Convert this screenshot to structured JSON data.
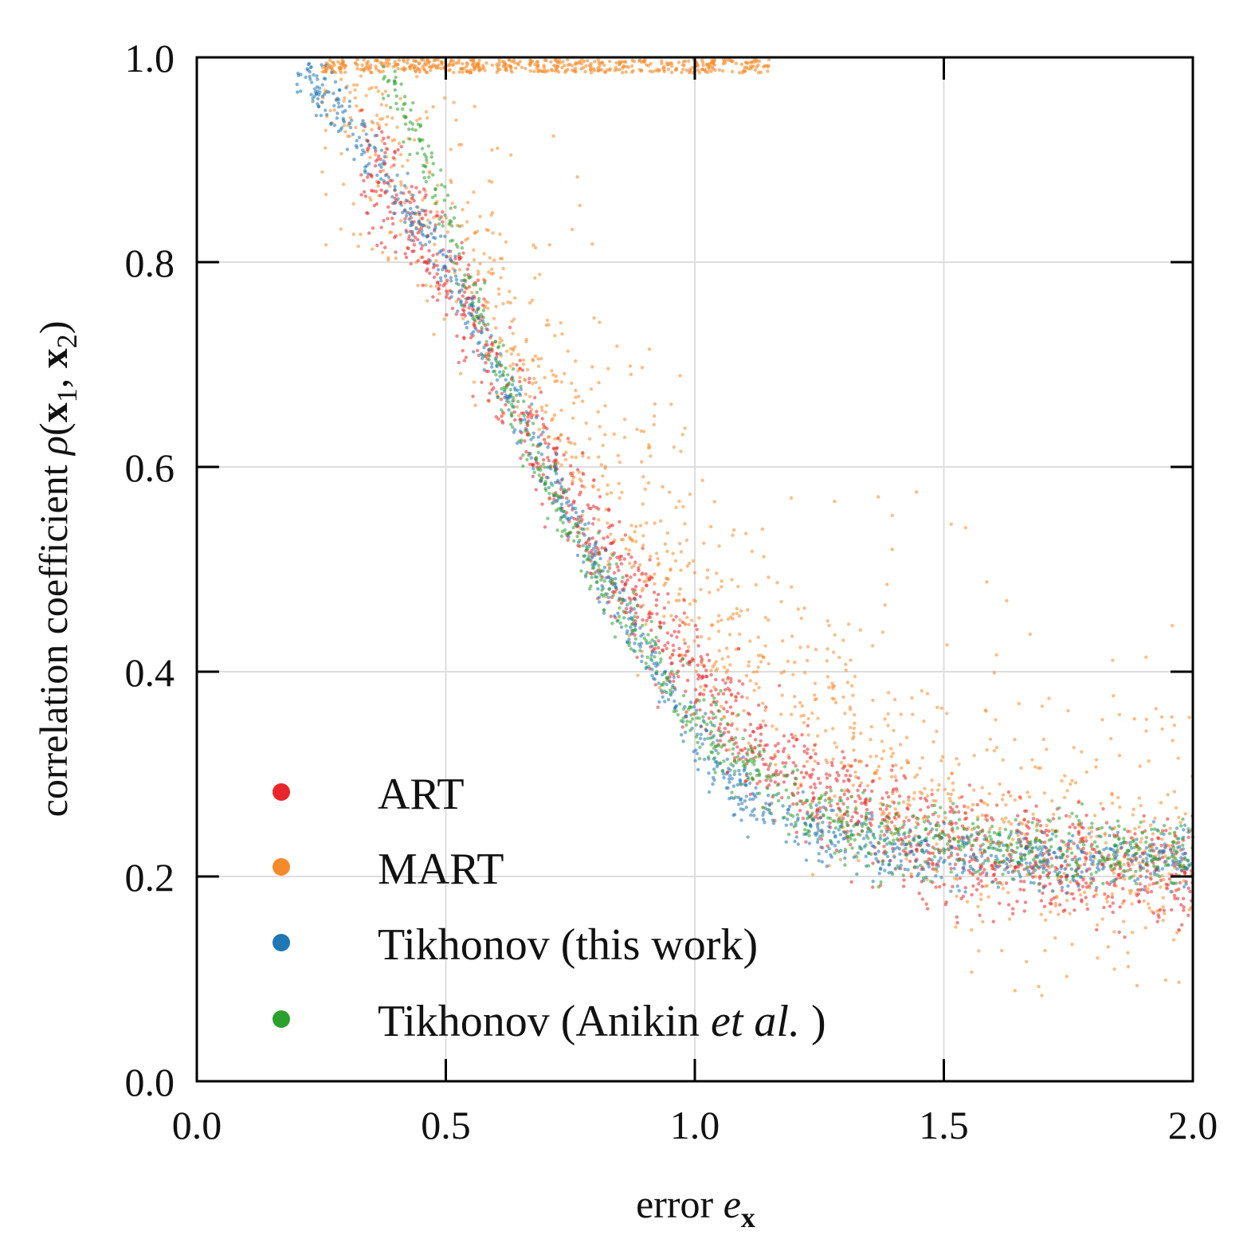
{
  "chart_data": {
    "type": "scatter",
    "title": "",
    "xlabel": {
      "prefix": "error ",
      "var": "e",
      "sub": "x"
    },
    "ylabel": {
      "prefix": "correlation coefficient ",
      "var": "ρ",
      "open": "(",
      "v1": "x",
      "s1": "1",
      "sep": ", ",
      "v2": "x",
      "s2": "2",
      "close": ")"
    },
    "xlim": [
      0.0,
      2.0
    ],
    "ylim": [
      0.0,
      1.0
    ],
    "x_ticks": [
      0.0,
      0.5,
      1.0,
      1.5,
      2.0
    ],
    "y_ticks": [
      0.0,
      0.2,
      0.4,
      0.6,
      0.8,
      1.0
    ],
    "x_tick_labels": [
      "0.0",
      "0.5",
      "1.0",
      "1.5",
      "2.0"
    ],
    "y_tick_labels": [
      "0.0",
      "0.2",
      "0.4",
      "0.6",
      "0.8",
      "1.0"
    ],
    "grid": true,
    "legend_position": "lower-left",
    "series": [
      {
        "name": "ART",
        "color": "#e8262a",
        "curve": {
          "x": [
            0.33,
            0.4,
            0.5,
            0.6,
            0.7,
            0.8,
            0.9,
            1.0,
            1.1,
            1.2,
            1.3,
            1.4,
            1.5,
            1.6,
            1.7,
            1.8,
            1.9,
            2.0
          ],
          "y": [
            0.9,
            0.86,
            0.79,
            0.7,
            0.61,
            0.53,
            0.46,
            0.4,
            0.34,
            0.3,
            0.27,
            0.245,
            0.23,
            0.22,
            0.215,
            0.21,
            0.205,
            0.2
          ]
        },
        "spread": 0.055
      },
      {
        "name": "MART",
        "color": "#f58a2a",
        "curve": {
          "x": [
            0.25,
            0.3,
            0.4,
            0.5,
            0.6,
            0.7,
            0.8,
            0.9,
            1.0,
            1.1,
            1.2,
            1.3,
            1.4,
            1.5,
            1.6,
            1.7,
            1.8,
            1.9,
            2.0
          ],
          "y": [
            0.98,
            0.96,
            0.88,
            0.82,
            0.75,
            0.67,
            0.59,
            0.52,
            0.46,
            0.41,
            0.36,
            0.32,
            0.29,
            0.26,
            0.24,
            0.225,
            0.215,
            0.21,
            0.205
          ]
        },
        "spread": 0.11,
        "top_band": {
          "x": [
            0.25,
            1.15
          ],
          "y": [
            0.985,
            0.998
          ]
        }
      },
      {
        "name": "Tikhonov (this work)",
        "color": "#1f77b4",
        "curve": {
          "x": [
            0.2,
            0.3,
            0.4,
            0.5,
            0.6,
            0.7,
            0.8,
            0.9,
            1.0,
            1.1,
            1.2,
            1.3,
            1.4,
            1.5,
            1.6,
            1.7,
            1.8,
            1.9,
            2.0
          ],
          "y": [
            0.99,
            0.94,
            0.87,
            0.8,
            0.7,
            0.6,
            0.51,
            0.42,
            0.34,
            0.28,
            0.25,
            0.235,
            0.225,
            0.22,
            0.215,
            0.215,
            0.215,
            0.22,
            0.22
          ]
        },
        "spread": 0.03
      },
      {
        "name": "Tikhonov (Anikin et al.)",
        "color": "#2ca02c",
        "curve": {
          "x": [
            0.37,
            0.42,
            0.5,
            0.6,
            0.7,
            0.8,
            0.9,
            1.0,
            1.1,
            1.2,
            1.3,
            1.4,
            1.5,
            1.6,
            1.7,
            1.8,
            1.9,
            2.0
          ],
          "y": [
            0.985,
            0.95,
            0.85,
            0.7,
            0.59,
            0.5,
            0.43,
            0.36,
            0.31,
            0.27,
            0.25,
            0.24,
            0.235,
            0.23,
            0.228,
            0.226,
            0.225,
            0.225
          ]
        },
        "spread": 0.035
      }
    ],
    "legend": {
      "entries": [
        {
          "label": "ART",
          "color": "#e8262a"
        },
        {
          "label": "MART",
          "color": "#f58a2a"
        },
        {
          "label": "Tikhonov (this work)",
          "color": "#1f77b4"
        },
        {
          "label_prefix": "Tikhonov (Anikin ",
          "label_italic": "et al.",
          "label_suffix": " )",
          "color": "#2ca02c"
        }
      ]
    }
  }
}
